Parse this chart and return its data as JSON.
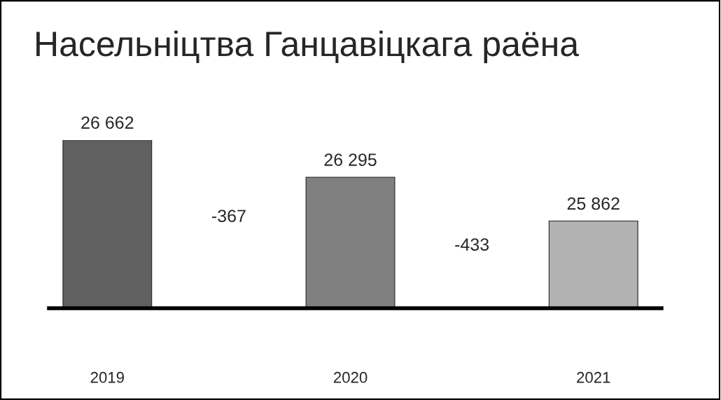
{
  "chart_data": {
    "type": "bar",
    "title": "Насельніцтва Ганцавіцкага раёна",
    "categories": [
      "2019",
      "2020",
      "2021"
    ],
    "values": [
      26662,
      26295,
      25862
    ],
    "colors": [
      "#606060",
      "#808080",
      "#b2b2b2"
    ],
    "ylim": [
      25000,
      26662
    ],
    "data_labels": true,
    "value_labels": [
      "26 662",
      "26 295",
      "25 862"
    ],
    "annotations": [
      "-367",
      "-433"
    ],
    "tick_labels": "x",
    "grid": false,
    "legend": false
  }
}
